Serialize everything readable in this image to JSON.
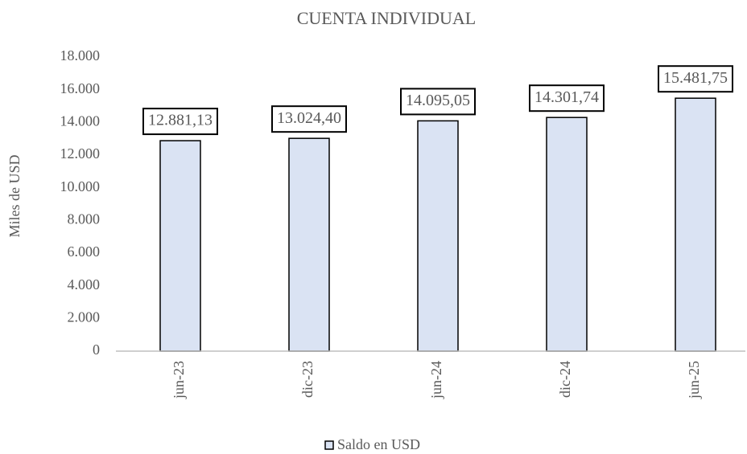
{
  "chart_data": {
    "type": "bar",
    "title": "CUENTA INDIVIDUAL",
    "y_label": "Miles de USD",
    "categories": [
      "jun-23",
      "dic-23",
      "jun-24",
      "dic-24",
      "jun-25"
    ],
    "series": [
      {
        "name": "Saldo en USD",
        "color": "#dae3f3",
        "values": [
          12881.13,
          13024.4,
          14095.05,
          14301.74,
          15481.75
        ],
        "value_labels": [
          "12.881,13",
          "13.024,40",
          "14.095,05",
          "14.301,74",
          "15.481,75"
        ]
      }
    ],
    "ylim": [
      0,
      18000
    ],
    "yticks": [
      0,
      {
        "value": 2000,
        "label": "2.000"
      },
      {
        "value": 4000,
        "label": "4.000"
      },
      {
        "value": 6000,
        "label": "6.000"
      },
      {
        "value": 8000,
        "label": "8.000"
      },
      {
        "value": 10000,
        "label": "10.000"
      },
      {
        "value": 12000,
        "label": "12.000"
      },
      {
        "value": 14000,
        "label": "14.000"
      },
      {
        "value": 16000,
        "label": "16.000"
      },
      {
        "value": 18000,
        "label": "18.000"
      }
    ],
    "legend": "bottom",
    "grid": false
  }
}
